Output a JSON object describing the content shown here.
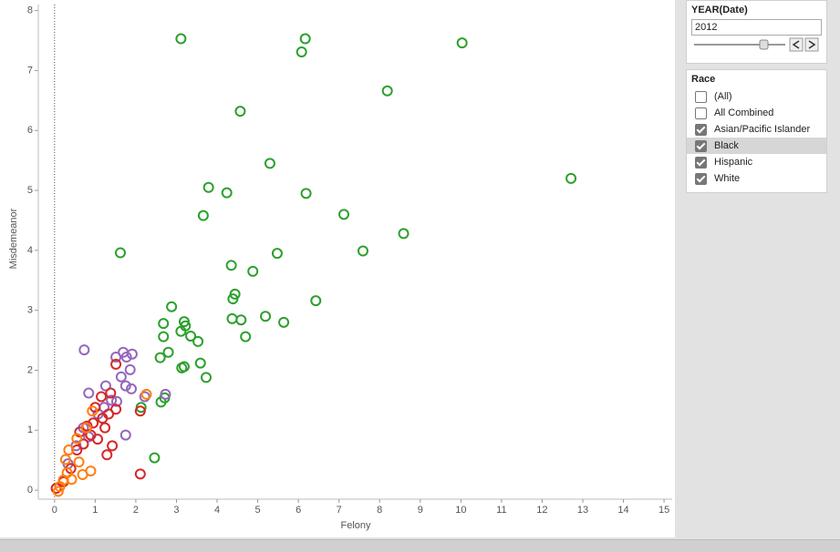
{
  "chart_data": {
    "type": "scatter",
    "x_label": "Felony",
    "y_label": "Misdemeanor",
    "xlim": [
      -0.4,
      15.2
    ],
    "ylim": [
      -0.15,
      8.1
    ],
    "xticks": [
      0,
      1,
      2,
      3,
      4,
      5,
      6,
      7,
      8,
      9,
      10,
      11,
      12,
      13,
      14,
      15
    ],
    "yticks": [
      0,
      1,
      2,
      3,
      4,
      5,
      6,
      7,
      8
    ],
    "series": [
      {
        "color": "#2ca02c",
        "x": [
          3.11,
          6.17,
          6.08,
          10.03,
          8.19,
          4.57,
          12.71,
          5.3,
          3.79,
          4.24,
          6.19,
          3.66,
          7.12,
          1.62,
          5.48,
          7.59,
          8.59,
          4.35,
          4.88,
          4.44,
          4.39,
          6.43,
          2.88,
          2.68,
          3.19,
          3.22,
          3.11,
          2.68,
          3.35,
          5.19,
          5.64,
          4.37,
          4.59,
          4.7,
          3.53,
          2.8,
          2.6,
          3.59,
          3.19,
          3.13,
          3.73,
          2.62,
          2.71,
          2.13,
          2.46
        ],
        "y": [
          7.53,
          7.53,
          7.31,
          7.46,
          6.66,
          6.32,
          5.2,
          5.45,
          5.05,
          4.96,
          4.95,
          4.58,
          4.6,
          3.96,
          3.95,
          3.99,
          4.28,
          3.75,
          3.65,
          3.27,
          3.19,
          3.16,
          3.06,
          2.78,
          2.81,
          2.74,
          2.65,
          2.56,
          2.57,
          2.9,
          2.8,
          2.86,
          2.84,
          2.56,
          2.48,
          2.3,
          2.21,
          2.12,
          2.06,
          2.04,
          1.88,
          1.47,
          1.54,
          1.38,
          0.54
        ]
      },
      {
        "color": "#9467bd",
        "x": [
          0.73,
          1.69,
          1.77,
          1.91,
          1.51,
          1.86,
          1.64,
          1.75,
          1.89,
          1.26,
          0.84,
          1.4,
          1.53,
          1.22,
          1.07,
          0.71,
          1.75,
          0.84,
          0.53,
          2.73,
          2.22,
          0.33
        ],
        "y": [
          2.34,
          2.3,
          2.22,
          2.27,
          2.22,
          2.01,
          1.89,
          1.74,
          1.69,
          1.74,
          1.62,
          1.5,
          1.48,
          1.38,
          1.27,
          1.04,
          0.92,
          0.89,
          0.74,
          1.6,
          1.56,
          0.44
        ]
      },
      {
        "color": "#d62728",
        "x": [
          1.51,
          1.38,
          1.15,
          1.0,
          1.51,
          1.33,
          1.18,
          0.95,
          0.8,
          1.24,
          0.62,
          0.89,
          1.06,
          0.71,
          0.55,
          1.29,
          0.4,
          0.22,
          0.04,
          2.11,
          2.11,
          1.42
        ],
        "y": [
          2.1,
          1.62,
          1.56,
          1.38,
          1.35,
          1.27,
          1.2,
          1.12,
          1.07,
          1.04,
          0.97,
          0.92,
          0.85,
          0.77,
          0.67,
          0.59,
          0.36,
          0.14,
          0.03,
          1.32,
          0.27,
          0.74
        ]
      },
      {
        "color": "#ff7f0e",
        "x": [
          2.26,
          0.93,
          0.78,
          0.55,
          0.35,
          0.89,
          0.69,
          0.27,
          0.42,
          0.22,
          0.13,
          0.09,
          0.31,
          0.6
        ],
        "y": [
          1.6,
          1.32,
          1.04,
          0.86,
          0.67,
          0.32,
          0.26,
          0.51,
          0.18,
          0.17,
          0.06,
          -0.02,
          0.29,
          0.47
        ]
      }
    ]
  },
  "filters": {
    "year": {
      "title": "YEAR(Date)",
      "value": "2012"
    },
    "race": {
      "title": "Race",
      "options": [
        {
          "label": "(All)",
          "checked": false
        },
        {
          "label": "All Combined",
          "checked": false
        },
        {
          "label": "Asian/Pacific Islander",
          "checked": true
        },
        {
          "label": "Black",
          "checked": true
        },
        {
          "label": "Hispanic",
          "checked": true
        },
        {
          "label": "White",
          "checked": true
        }
      ]
    }
  }
}
